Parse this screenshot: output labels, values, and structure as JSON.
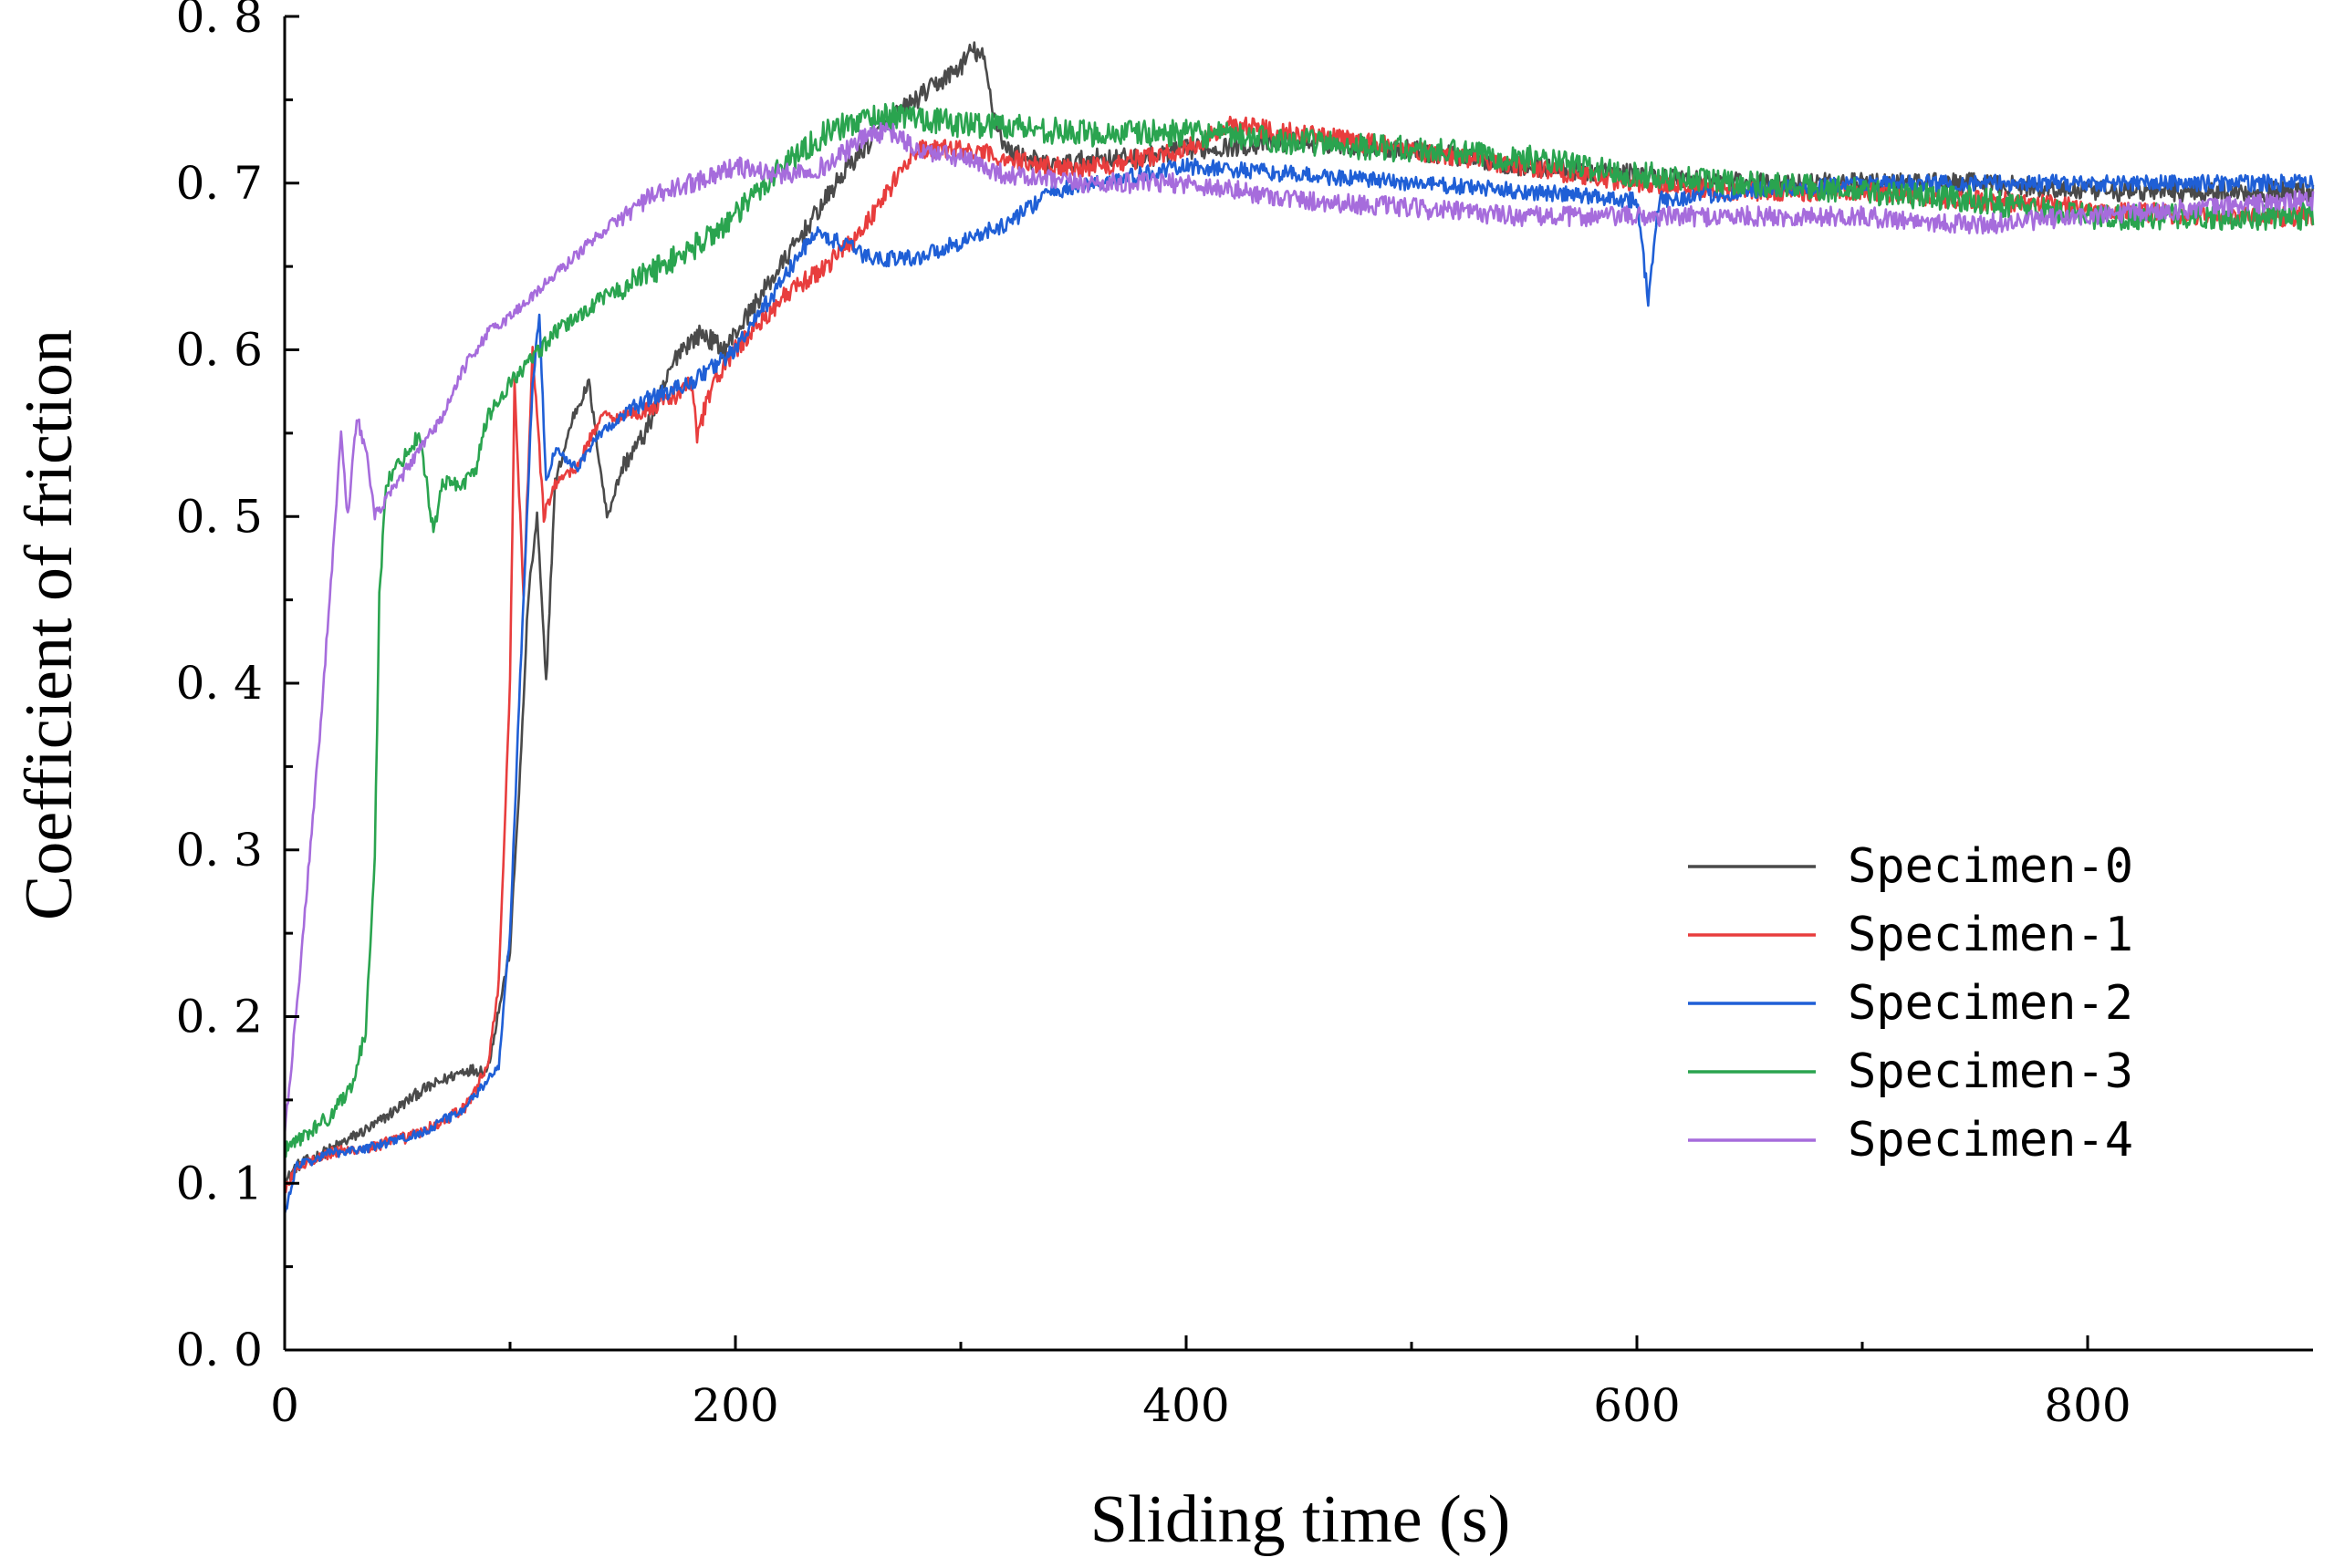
{
  "chart_data": {
    "type": "line",
    "title": "",
    "xlabel": "Sliding time (s)",
    "ylabel": "Coefficient of friction",
    "xlim": [
      0,
      900
    ],
    "ylim": [
      0.0,
      0.8
    ],
    "x_ticks": [
      0,
      200,
      400,
      600,
      800
    ],
    "x_tick_labels": [
      "0",
      "200",
      "400",
      "600",
      "800"
    ],
    "y_ticks": [
      0.0,
      0.1,
      0.2,
      0.3,
      0.4,
      0.5,
      0.6,
      0.7,
      0.8
    ],
    "y_tick_labels": [
      "0. 0",
      "0. 1",
      "0. 2",
      "0. 3",
      "0. 4",
      "0. 5",
      "0. 6",
      "0. 7",
      "0. 8"
    ],
    "grid": false,
    "legend_position": "center-right",
    "series": [
      {
        "name": "Specimen-0",
        "color": "#4a4a4a",
        "noise": 0.006,
        "x": [
          0,
          5,
          20,
          40,
          60,
          80,
          90,
          100,
          105,
          108,
          112,
          116,
          120,
          128,
          135,
          143,
          150,
          160,
          175,
          185,
          195,
          210,
          230,
          250,
          270,
          290,
          300,
          305,
          310,
          315,
          320,
          340,
          360,
          380,
          400,
          450,
          500,
          550,
          600,
          650,
          700,
          750,
          800,
          850,
          900
        ],
        "y": [
          0.1,
          0.11,
          0.12,
          0.135,
          0.155,
          0.168,
          0.168,
          0.24,
          0.36,
          0.45,
          0.5,
          0.4,
          0.52,
          0.56,
          0.58,
          0.5,
          0.53,
          0.55,
          0.6,
          0.61,
          0.6,
          0.63,
          0.67,
          0.71,
          0.74,
          0.76,
          0.77,
          0.78,
          0.775,
          0.74,
          0.72,
          0.71,
          0.715,
          0.715,
          0.72,
          0.725,
          0.72,
          0.71,
          0.705,
          0.7,
          0.7,
          0.7,
          0.695,
          0.695,
          0.695
        ]
      },
      {
        "name": "Specimen-1",
        "color": "#e83d3d",
        "noise": 0.006,
        "x": [
          0,
          5,
          20,
          40,
          60,
          80,
          90,
          95,
          100,
          102,
          106,
          110,
          115,
          120,
          130,
          140,
          150,
          170,
          180,
          183,
          190,
          200,
          220,
          240,
          255,
          270,
          280,
          290,
          300,
          320,
          340,
          360,
          380,
          400,
          420,
          450,
          500,
          550,
          600,
          650,
          700,
          750,
          800,
          850,
          900
        ],
        "y": [
          0.095,
          0.11,
          0.118,
          0.122,
          0.13,
          0.145,
          0.17,
          0.22,
          0.4,
          0.58,
          0.45,
          0.6,
          0.5,
          0.52,
          0.53,
          0.56,
          0.56,
          0.57,
          0.58,
          0.55,
          0.58,
          0.6,
          0.63,
          0.65,
          0.67,
          0.7,
          0.72,
          0.72,
          0.72,
          0.715,
          0.71,
          0.71,
          0.715,
          0.72,
          0.735,
          0.73,
          0.72,
          0.71,
          0.7,
          0.695,
          0.695,
          0.69,
          0.685,
          0.68,
          0.68
        ]
      },
      {
        "name": "Specimen-2",
        "color": "#1f5fd6",
        "noise": 0.005,
        "x": [
          0,
          5,
          20,
          40,
          60,
          80,
          95,
          100,
          105,
          110,
          113,
          116,
          120,
          130,
          140,
          160,
          180,
          200,
          220,
          235,
          245,
          260,
          280,
          300,
          320,
          340,
          360,
          380,
          400,
          450,
          500,
          550,
          600,
          605,
          610,
          650,
          700,
          750,
          800,
          850,
          900
        ],
        "y": [
          0.08,
          0.11,
          0.118,
          0.122,
          0.13,
          0.145,
          0.17,
          0.25,
          0.42,
          0.58,
          0.62,
          0.52,
          0.54,
          0.53,
          0.55,
          0.57,
          0.58,
          0.6,
          0.64,
          0.67,
          0.665,
          0.655,
          0.655,
          0.665,
          0.675,
          0.695,
          0.7,
          0.705,
          0.71,
          0.705,
          0.7,
          0.695,
          0.69,
          0.63,
          0.69,
          0.695,
          0.7,
          0.7,
          0.7,
          0.7,
          0.7
        ]
      },
      {
        "name": "Specimen-3",
        "color": "#2aa44f",
        "noise": 0.008,
        "x": [
          0,
          10,
          20,
          30,
          36,
          40,
          42,
          45,
          50,
          60,
          66,
          70,
          80,
          85,
          90,
          100,
          120,
          140,
          160,
          180,
          200,
          220,
          240,
          260,
          280,
          300,
          320,
          350,
          400,
          450,
          500,
          550,
          600,
          650,
          700,
          750,
          800,
          850,
          900
        ],
        "y": [
          0.12,
          0.13,
          0.14,
          0.16,
          0.19,
          0.3,
          0.45,
          0.52,
          0.53,
          0.55,
          0.49,
          0.52,
          0.52,
          0.53,
          0.56,
          0.58,
          0.61,
          0.63,
          0.645,
          0.66,
          0.68,
          0.71,
          0.73,
          0.74,
          0.74,
          0.735,
          0.735,
          0.73,
          0.73,
          0.725,
          0.72,
          0.715,
          0.705,
          0.7,
          0.695,
          0.69,
          0.68,
          0.68,
          0.68
        ]
      },
      {
        "name": "Specimen-4",
        "color": "#a66cdc",
        "noise": 0.006,
        "x": [
          0,
          5,
          10,
          15,
          20,
          25,
          28,
          32,
          36,
          40,
          50,
          70,
          80,
          90,
          100,
          120,
          140,
          160,
          180,
          200,
          220,
          240,
          260,
          270,
          280,
          300,
          320,
          350,
          400,
          450,
          500,
          550,
          600,
          650,
          700,
          750,
          800,
          850,
          900
        ],
        "y": [
          0.13,
          0.2,
          0.28,
          0.36,
          0.45,
          0.55,
          0.5,
          0.56,
          0.54,
          0.5,
          0.52,
          0.56,
          0.59,
          0.61,
          0.62,
          0.645,
          0.67,
          0.69,
          0.7,
          0.71,
          0.705,
          0.71,
          0.73,
          0.73,
          0.72,
          0.715,
          0.705,
          0.7,
          0.7,
          0.69,
          0.685,
          0.68,
          0.68,
          0.68,
          0.68,
          0.675,
          0.68,
          0.685,
          0.69
        ]
      }
    ]
  }
}
